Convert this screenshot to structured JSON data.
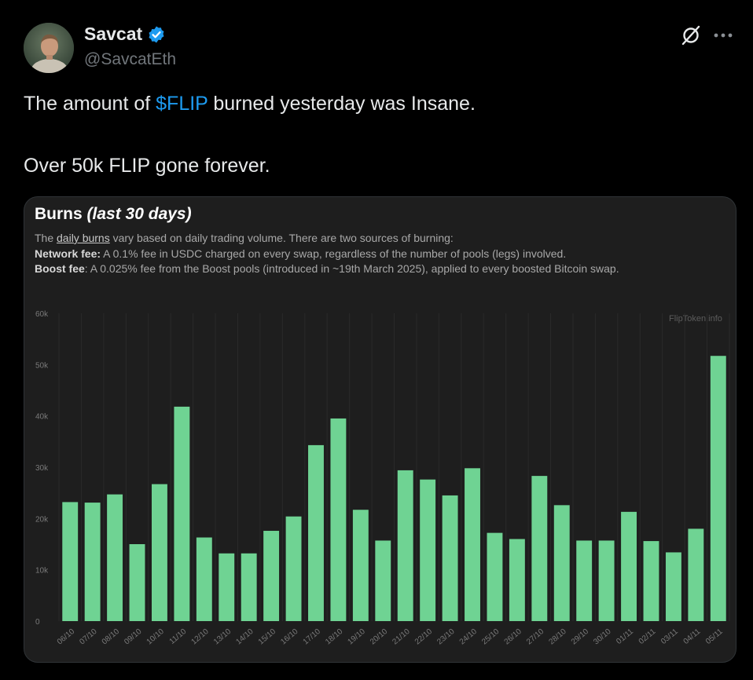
{
  "author": {
    "name": "Savcat",
    "handle": "@SavcatEth",
    "verified": true
  },
  "icons": {
    "verified": "verified-badge-icon",
    "grok": "grok-icon",
    "more": "more-options-icon"
  },
  "tweet": {
    "line1_before": "The amount of ",
    "cashtag": "$FLIP",
    "line1_after": " burned yesterday was Insane.",
    "line2": "Over 50k FLIP gone forever."
  },
  "card": {
    "title_main": "Burns",
    "title_italic": "(last 30 days)",
    "desc1_before": "The ",
    "desc1_link": "daily burns",
    "desc1_after": " vary based on daily trading volume. There are two sources of burning:",
    "desc2_label": "Network fee:",
    "desc2_text": " A 0.1% fee in USDC charged on every swap, regardless of the number of pools (legs) involved.",
    "desc3_label": "Boost fee",
    "desc3_text": ": A 0.025% fee from the Boost pools (introduced in ~19th March 2025), applied to every boosted Bitcoin swap.",
    "watermark": "FlipToken.info"
  },
  "colors": {
    "bar": "#6fd393",
    "cashtag": "#1d9bf0",
    "background": "#000000",
    "card": "#1e1e1e"
  },
  "chart_data": {
    "type": "bar",
    "categories": [
      "06/10",
      "07/10",
      "08/10",
      "09/10",
      "10/10",
      "11/10",
      "12/10",
      "13/10",
      "14/10",
      "15/10",
      "16/10",
      "17/10",
      "18/10",
      "19/10",
      "20/10",
      "21/10",
      "22/10",
      "23/10",
      "24/10",
      "25/10",
      "26/10",
      "27/10",
      "28/10",
      "29/10",
      "30/10",
      "01/11",
      "02/11",
      "03/11",
      "04/11",
      "05/11"
    ],
    "values": [
      23200,
      23100,
      24700,
      15000,
      26700,
      41800,
      16300,
      13200,
      13200,
      17600,
      20400,
      34300,
      39500,
      21700,
      15700,
      29400,
      27600,
      24500,
      29800,
      17200,
      16000,
      28300,
      22600,
      15700,
      15700,
      21300,
      15600,
      13400,
      18000,
      51700
    ],
    "ylim": [
      0,
      60000
    ],
    "yticks": [
      "0",
      "10k",
      "20k",
      "30k",
      "40k",
      "50k",
      "60k"
    ],
    "ytick_values": [
      0,
      10000,
      20000,
      30000,
      40000,
      50000,
      60000
    ],
    "grid": true
  }
}
